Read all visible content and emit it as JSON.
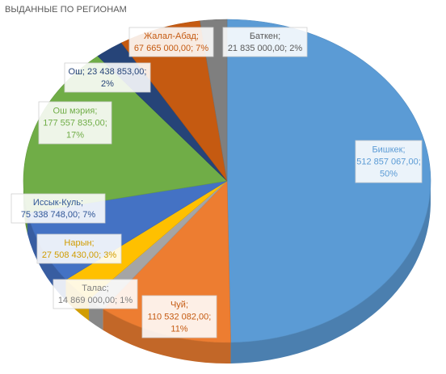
{
  "chart_data": {
    "type": "pie",
    "title": "ВЫДАННЫЕ ПО РЕГИОНАМ",
    "three_d": true,
    "legend": "none",
    "slices": [
      {
        "name": "Бишкек",
        "value": 512857067.0,
        "value_text": "512 857 067,00",
        "percent_text": "50%",
        "color": "#5b9bd5",
        "text_color": "#5b9bd5",
        "label_lines": [
          "Бишкек;",
          "512 857 067,00;",
          "50%"
        ]
      },
      {
        "name": "Чуй",
        "value": 110532082.0,
        "value_text": "110 532 082,00",
        "percent_text": "11%",
        "color": "#ed7d31",
        "text_color": "#c55a11",
        "label_lines": [
          "Чуй;",
          "110 532 082,00;",
          "11%"
        ]
      },
      {
        "name": "Талас",
        "value": 14869000.0,
        "value_text": "14 869 000,00",
        "percent_text": "1%",
        "color": "#a5a5a5",
        "text_color": "#7f7f7f",
        "label_lines": [
          "Талас;",
          "14 869 000,00; 1%"
        ]
      },
      {
        "name": "Нарын",
        "value": 27508430.0,
        "value_text": "27 508 430,00",
        "percent_text": "3%",
        "color": "#ffc000",
        "text_color": "#d09c00",
        "label_lines": [
          "Нарын;",
          "27 508 430,00; 3%"
        ]
      },
      {
        "name": "Иссык-Куль",
        "value": 75338748.0,
        "value_text": "75 338 748,00",
        "percent_text": "7%",
        "color": "#4472c4",
        "text_color": "#2f5597",
        "label_lines": [
          "Иссык-Куль;",
          "75 338 748,00; 7%"
        ]
      },
      {
        "name": "Ош мэрия",
        "value": 177557835.0,
        "value_text": "177 557 835,00",
        "percent_text": "17%",
        "color": "#70ad47",
        "text_color": "#70ad47",
        "label_lines": [
          "Ош мэрия;",
          "177 557 835,00;",
          "17%"
        ]
      },
      {
        "name": "Ош",
        "value": 23438853.0,
        "value_text": "23 438 853,00",
        "percent_text": "2%",
        "color": "#264478",
        "text_color": "#264478",
        "label_lines": [
          "Ош; 23 438 853,00;",
          "2%"
        ]
      },
      {
        "name": "Жалал-Абад",
        "value": 67665000.0,
        "value_text": "67 665 000,00",
        "percent_text": "7%",
        "color": "#c55a11",
        "text_color": "#c55a11",
        "label_lines": [
          "Жалал-Абад;",
          "67 665 000,00; 7%"
        ]
      },
      {
        "name": "Баткен",
        "value": 21835000.0,
        "value_text": "21 835 000,00",
        "percent_text": "2%",
        "color": "#7f7f7f",
        "text_color": "#595959",
        "label_lines": [
          "Баткен;",
          "21 835 000,00; 2%"
        ]
      }
    ]
  }
}
